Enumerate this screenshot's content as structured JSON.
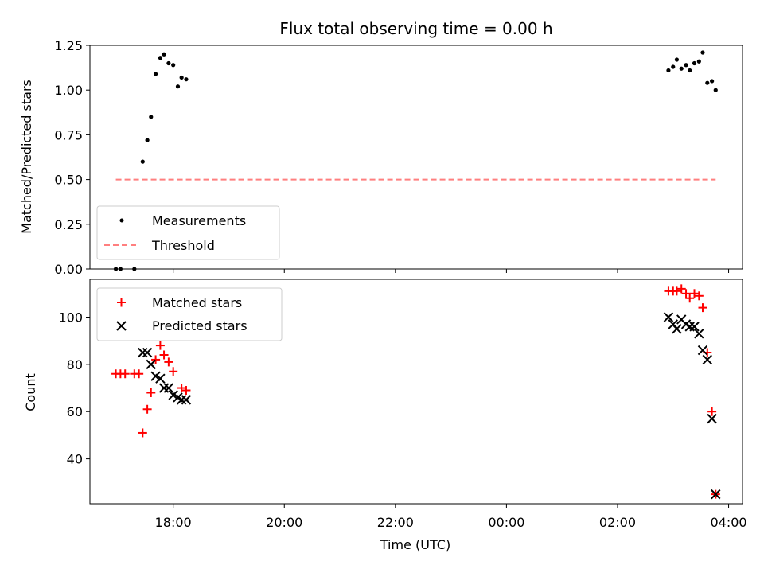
{
  "chart_data": [
    {
      "type": "scatter",
      "title": "Flux total observing time = 0.00 h",
      "xlabel": "",
      "ylabel": "Matched/Predicted stars",
      "xlim": [
        "16:30",
        "04:15"
      ],
      "ylim": [
        0,
        1.25
      ],
      "yticks": [
        0.0,
        0.25,
        0.5,
        0.75,
        1.0,
        1.25
      ],
      "ytick_labels": [
        "0.00",
        "0.25",
        "0.50",
        "0.75",
        "1.00",
        "1.25"
      ],
      "grid": false,
      "legend_location": "lower left",
      "series": [
        {
          "name": "Measurements",
          "marker": "dot",
          "color": "#000000",
          "points": [
            {
              "x": "16:58",
              "y": 0.0
            },
            {
              "x": "17:03",
              "y": 0.0
            },
            {
              "x": "17:18",
              "y": 0.0
            },
            {
              "x": "17:27",
              "y": 0.6
            },
            {
              "x": "17:32",
              "y": 0.72
            },
            {
              "x": "17:36",
              "y": 0.85
            },
            {
              "x": "17:41",
              "y": 1.09
            },
            {
              "x": "17:46",
              "y": 1.18
            },
            {
              "x": "17:50",
              "y": 1.2
            },
            {
              "x": "17:55",
              "y": 1.15
            },
            {
              "x": "18:00",
              "y": 1.14
            },
            {
              "x": "18:05",
              "y": 1.02
            },
            {
              "x": "18:09",
              "y": 1.07
            },
            {
              "x": "18:14",
              "y": 1.06
            },
            {
              "x": "02:55",
              "y": 1.11
            },
            {
              "x": "03:00",
              "y": 1.13
            },
            {
              "x": "03:04",
              "y": 1.17
            },
            {
              "x": "03:09",
              "y": 1.12
            },
            {
              "x": "03:14",
              "y": 1.14
            },
            {
              "x": "03:18",
              "y": 1.11
            },
            {
              "x": "03:23",
              "y": 1.15
            },
            {
              "x": "03:28",
              "y": 1.16
            },
            {
              "x": "03:32",
              "y": 1.21
            },
            {
              "x": "03:37",
              "y": 1.04
            },
            {
              "x": "03:42",
              "y": 1.05
            },
            {
              "x": "03:46",
              "y": 1.0
            }
          ]
        },
        {
          "name": "Threshold",
          "line_style": "dashed",
          "color": "#ff7f7f",
          "points": [
            {
              "x": "16:58",
              "y": 0.5
            },
            {
              "x": "03:46",
              "y": 0.5
            }
          ]
        }
      ]
    },
    {
      "type": "scatter",
      "title": "",
      "xlabel": "Time (UTC)",
      "ylabel": "Count",
      "xlim": [
        "16:30",
        "04:15"
      ],
      "ylim": [
        21,
        116
      ],
      "xticks": [
        "18:00",
        "20:00",
        "22:00",
        "00:00",
        "02:00",
        "04:00"
      ],
      "yticks": [
        40,
        60,
        80,
        100
      ],
      "ytick_labels": [
        "40",
        "60",
        "80",
        "100"
      ],
      "grid": false,
      "legend_location": "upper left",
      "series": [
        {
          "name": "Matched stars",
          "marker": "plus",
          "color": "#ff0000",
          "points": [
            {
              "x": "16:58",
              "y": 76
            },
            {
              "x": "17:03",
              "y": 76
            },
            {
              "x": "17:08",
              "y": 76
            },
            {
              "x": "17:18",
              "y": 76
            },
            {
              "x": "17:23",
              "y": 76
            },
            {
              "x": "17:27",
              "y": 51
            },
            {
              "x": "17:32",
              "y": 61
            },
            {
              "x": "17:36",
              "y": 68
            },
            {
              "x": "17:41",
              "y": 82
            },
            {
              "x": "17:46",
              "y": 88
            },
            {
              "x": "17:50",
              "y": 84
            },
            {
              "x": "17:55",
              "y": 81
            },
            {
              "x": "18:00",
              "y": 77
            },
            {
              "x": "18:09",
              "y": 70
            },
            {
              "x": "18:14",
              "y": 69
            },
            {
              "x": "02:55",
              "y": 111
            },
            {
              "x": "03:00",
              "y": 111
            },
            {
              "x": "03:04",
              "y": 111
            },
            {
              "x": "03:09",
              "y": 112
            },
            {
              "x": "03:14",
              "y": 110
            },
            {
              "x": "03:18",
              "y": 108
            },
            {
              "x": "03:23",
              "y": 110
            },
            {
              "x": "03:28",
              "y": 109
            },
            {
              "x": "03:32",
              "y": 104
            },
            {
              "x": "03:37",
              "y": 85
            },
            {
              "x": "03:42",
              "y": 60
            },
            {
              "x": "03:46",
              "y": 25
            }
          ]
        },
        {
          "name": "Predicted stars",
          "marker": "x",
          "color": "#000000",
          "points": [
            {
              "x": "17:27",
              "y": 85
            },
            {
              "x": "17:32",
              "y": 85
            },
            {
              "x": "17:36",
              "y": 80
            },
            {
              "x": "17:41",
              "y": 75
            },
            {
              "x": "17:46",
              "y": 74
            },
            {
              "x": "17:50",
              "y": 70
            },
            {
              "x": "17:55",
              "y": 70
            },
            {
              "x": "18:00",
              "y": 67
            },
            {
              "x": "18:05",
              "y": 66
            },
            {
              "x": "18:09",
              "y": 65
            },
            {
              "x": "18:14",
              "y": 65
            },
            {
              "x": "02:55",
              "y": 100
            },
            {
              "x": "03:00",
              "y": 97
            },
            {
              "x": "03:04",
              "y": 95
            },
            {
              "x": "03:09",
              "y": 99
            },
            {
              "x": "03:14",
              "y": 97
            },
            {
              "x": "03:18",
              "y": 96
            },
            {
              "x": "03:23",
              "y": 96
            },
            {
              "x": "03:28",
              "y": 93
            },
            {
              "x": "03:32",
              "y": 86
            },
            {
              "x": "03:37",
              "y": 82
            },
            {
              "x": "03:42",
              "y": 57
            },
            {
              "x": "03:46",
              "y": 25
            }
          ]
        }
      ]
    }
  ]
}
